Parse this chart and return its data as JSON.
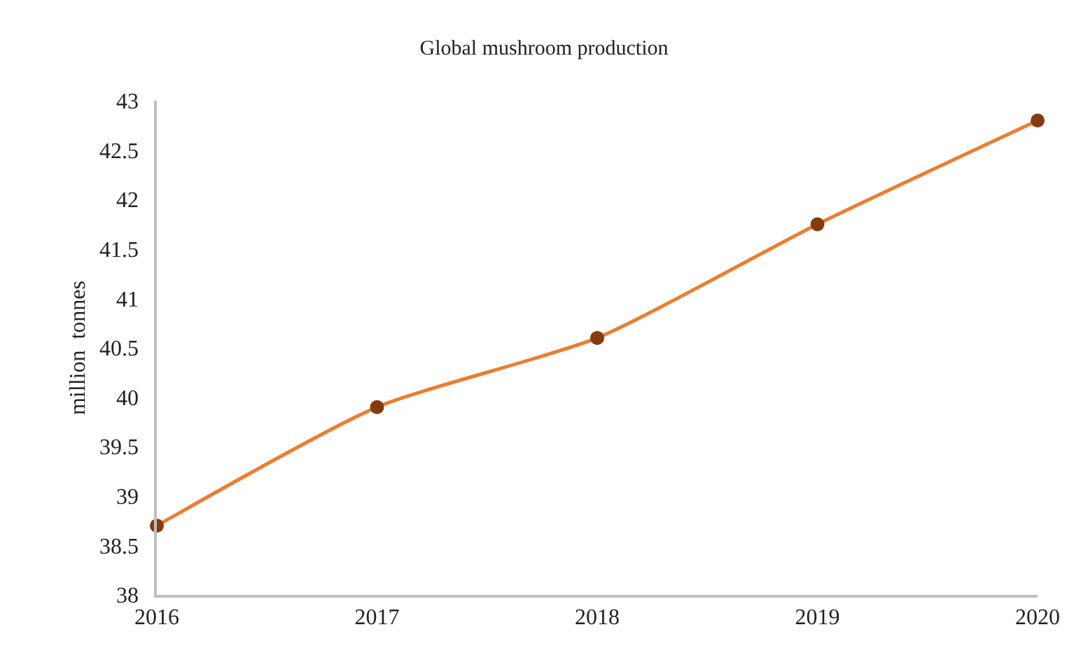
{
  "chart_data": {
    "type": "line",
    "title": "Global mushroom production",
    "ylabel": "million  tonnes",
    "x": [
      2016,
      2017,
      2018,
      2019,
      2020
    ],
    "series": [
      {
        "color": "#ed7d31",
        "colors": [
          "#843c0c",
          "#843c0c",
          "#843c0c",
          "#843c0c",
          "#843c0c"
        ],
        "values": [
          38.7,
          39.9,
          40.6,
          41.75,
          42.8
        ]
      }
    ],
    "xlim": [
      2016,
      2020
    ],
    "xticks": [
      2016,
      2017,
      2018,
      2019,
      2020
    ],
    "ylim": [
      38,
      43
    ],
    "yticks": [
      38,
      {
        "value": 38.5,
        "label": "38.5"
      },
      39,
      {
        "value": 39.5,
        "label": "39.5"
      },
      40,
      {
        "value": 40.5,
        "label": "40.5"
      },
      41,
      {
        "value": 41.5,
        "label": "41.5"
      },
      42,
      {
        "value": 42.5,
        "label": "42.5"
      },
      43
    ],
    "grid": false,
    "marker": "circle",
    "line_style": "solid"
  }
}
